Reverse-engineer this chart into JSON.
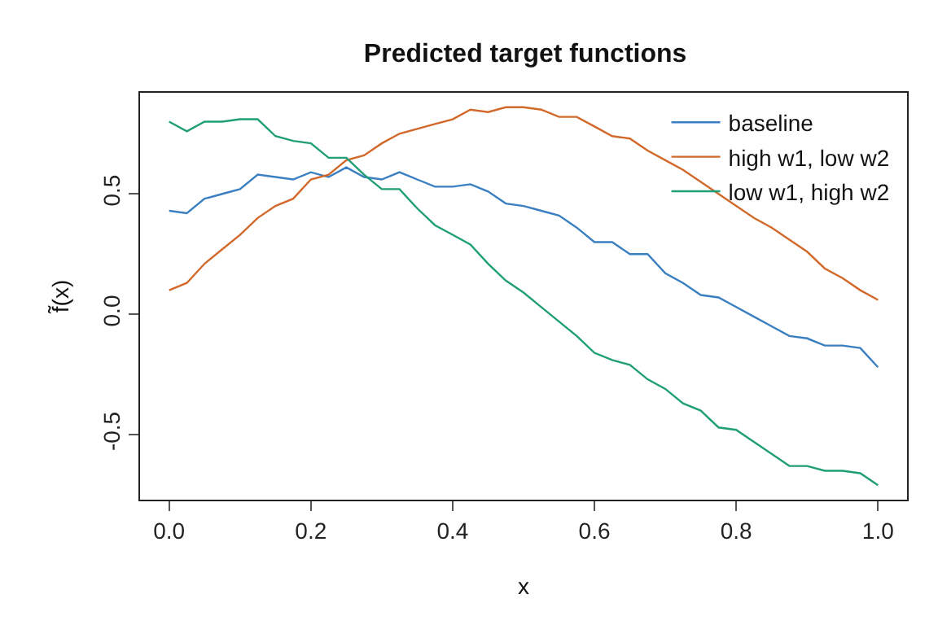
{
  "chart_data": {
    "type": "line",
    "title": "Predicted target functions",
    "xlabel": "x",
    "ylabel": "f̃(x)",
    "x": [
      0,
      0.025,
      0.05,
      0.075,
      0.1,
      0.125,
      0.15,
      0.175,
      0.2,
      0.225,
      0.25,
      0.275,
      0.3,
      0.325,
      0.35,
      0.375,
      0.4,
      0.425,
      0.45,
      0.475,
      0.5,
      0.525,
      0.55,
      0.575,
      0.6,
      0.625,
      0.65,
      0.675,
      0.7,
      0.725,
      0.75,
      0.775,
      0.8,
      0.825,
      0.85,
      0.875,
      0.9,
      0.925,
      0.95,
      0.975,
      1.0
    ],
    "series": [
      {
        "name": "baseline",
        "color": "#3a7fc1",
        "values": [
          0.43,
          0.42,
          0.48,
          0.5,
          0.52,
          0.58,
          0.57,
          0.56,
          0.59,
          0.57,
          0.61,
          0.57,
          0.56,
          0.59,
          0.56,
          0.53,
          0.53,
          0.54,
          0.51,
          0.46,
          0.45,
          0.43,
          0.41,
          0.36,
          0.3,
          0.3,
          0.25,
          0.25,
          0.17,
          0.13,
          0.08,
          0.07,
          0.03,
          -0.01,
          -0.05,
          -0.09,
          -0.1,
          -0.13,
          -0.13,
          -0.14,
          -0.22
        ]
      },
      {
        "name": "high w1, low w2",
        "color": "#d2692a",
        "values": [
          0.1,
          0.13,
          0.21,
          0.27,
          0.33,
          0.4,
          0.45,
          0.48,
          0.56,
          0.58,
          0.64,
          0.66,
          0.71,
          0.75,
          0.77,
          0.79,
          0.81,
          0.85,
          0.84,
          0.86,
          0.86,
          0.85,
          0.82,
          0.82,
          0.78,
          0.74,
          0.73,
          0.68,
          0.64,
          0.6,
          0.55,
          0.5,
          0.45,
          0.4,
          0.36,
          0.31,
          0.26,
          0.19,
          0.15,
          0.1,
          0.06
        ]
      },
      {
        "name": "low w1, high w2",
        "color": "#1f9e77",
        "values": [
          0.8,
          0.76,
          0.8,
          0.8,
          0.81,
          0.81,
          0.74,
          0.72,
          0.71,
          0.65,
          0.65,
          0.58,
          0.52,
          0.52,
          0.44,
          0.37,
          0.33,
          0.29,
          0.21,
          0.14,
          0.09,
          0.03,
          -0.03,
          -0.09,
          -0.16,
          -0.19,
          -0.21,
          -0.27,
          -0.31,
          -0.37,
          -0.4,
          -0.47,
          -0.48,
          -0.53,
          -0.58,
          -0.63,
          -0.63,
          -0.65,
          -0.65,
          -0.66,
          -0.71
        ]
      }
    ],
    "xlim": [
      -0.041,
      1.041
    ],
    "ylim": [
      -0.77,
      0.92
    ],
    "xticks": [
      {
        "value": 0,
        "label": "0.0"
      },
      {
        "value": 0.2,
        "label": "0.2"
      },
      {
        "value": 0.4,
        "label": "0.4"
      },
      {
        "value": 0.6,
        "label": "0.6"
      },
      {
        "value": 0.8,
        "label": "0.8"
      },
      {
        "value": 1.0,
        "label": "1.0"
      }
    ],
    "yticks": [
      {
        "value": -0.5,
        "label": "-0.5"
      },
      {
        "value": 0,
        "label": "0.0"
      },
      {
        "value": 0.5,
        "label": "0.5"
      }
    ],
    "grid": false,
    "legend": "top right",
    "marker": "none",
    "line_style": "solid"
  }
}
